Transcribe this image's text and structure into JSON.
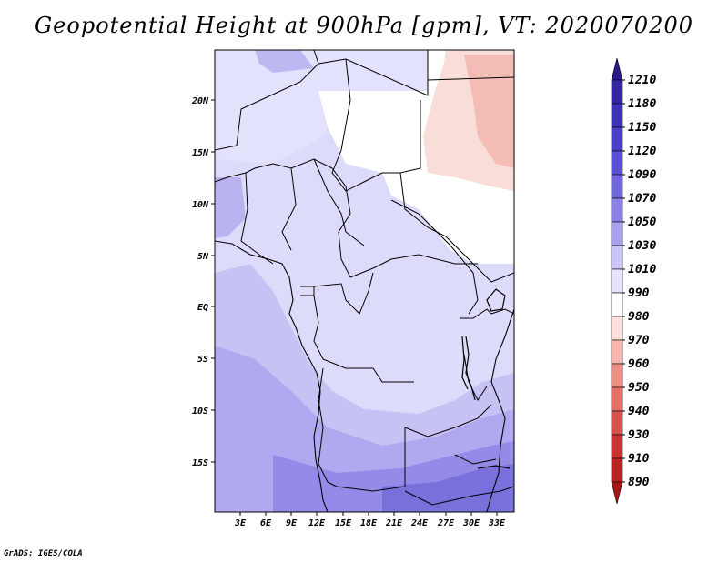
{
  "title": "Geopotential Height at 900hPa [gpm], VT: 2020070200",
  "footer": "GrADS: IGES/COLA",
  "axes": {
    "lat_labels": [
      "20N",
      "15N",
      "10N",
      "5N",
      "EQ",
      "5S",
      "10S",
      "15S"
    ],
    "lon_labels": [
      "3E",
      "6E",
      "9E",
      "12E",
      "15E",
      "18E",
      "21E",
      "24E",
      "27E",
      "30E",
      "33E"
    ]
  },
  "colorbar": {
    "levels": [
      "1210",
      "1180",
      "1150",
      "1120",
      "1090",
      "1070",
      "1050",
      "1030",
      "1010",
      "990",
      "980",
      "970",
      "960",
      "950",
      "940",
      "930",
      "910",
      "890"
    ],
    "colors": [
      "#2a1a8e",
      "#3427a5",
      "#3e33b8",
      "#4a40c8",
      "#5a50d6",
      "#7067df",
      "#8a82e6",
      "#a7a1ee",
      "#cac6f6",
      "#e6e4fb",
      "#ffffff",
      "#fde0dc",
      "#f7b7b0",
      "#ef9088",
      "#e5706a",
      "#d95050",
      "#cc3434",
      "#bb2222",
      "#a81616"
    ]
  },
  "colors": {
    "low_height": "#f7c6c0",
    "mid_height": "#dcdcfa",
    "high_height": "#8a80e4",
    "border": "#000000"
  }
}
